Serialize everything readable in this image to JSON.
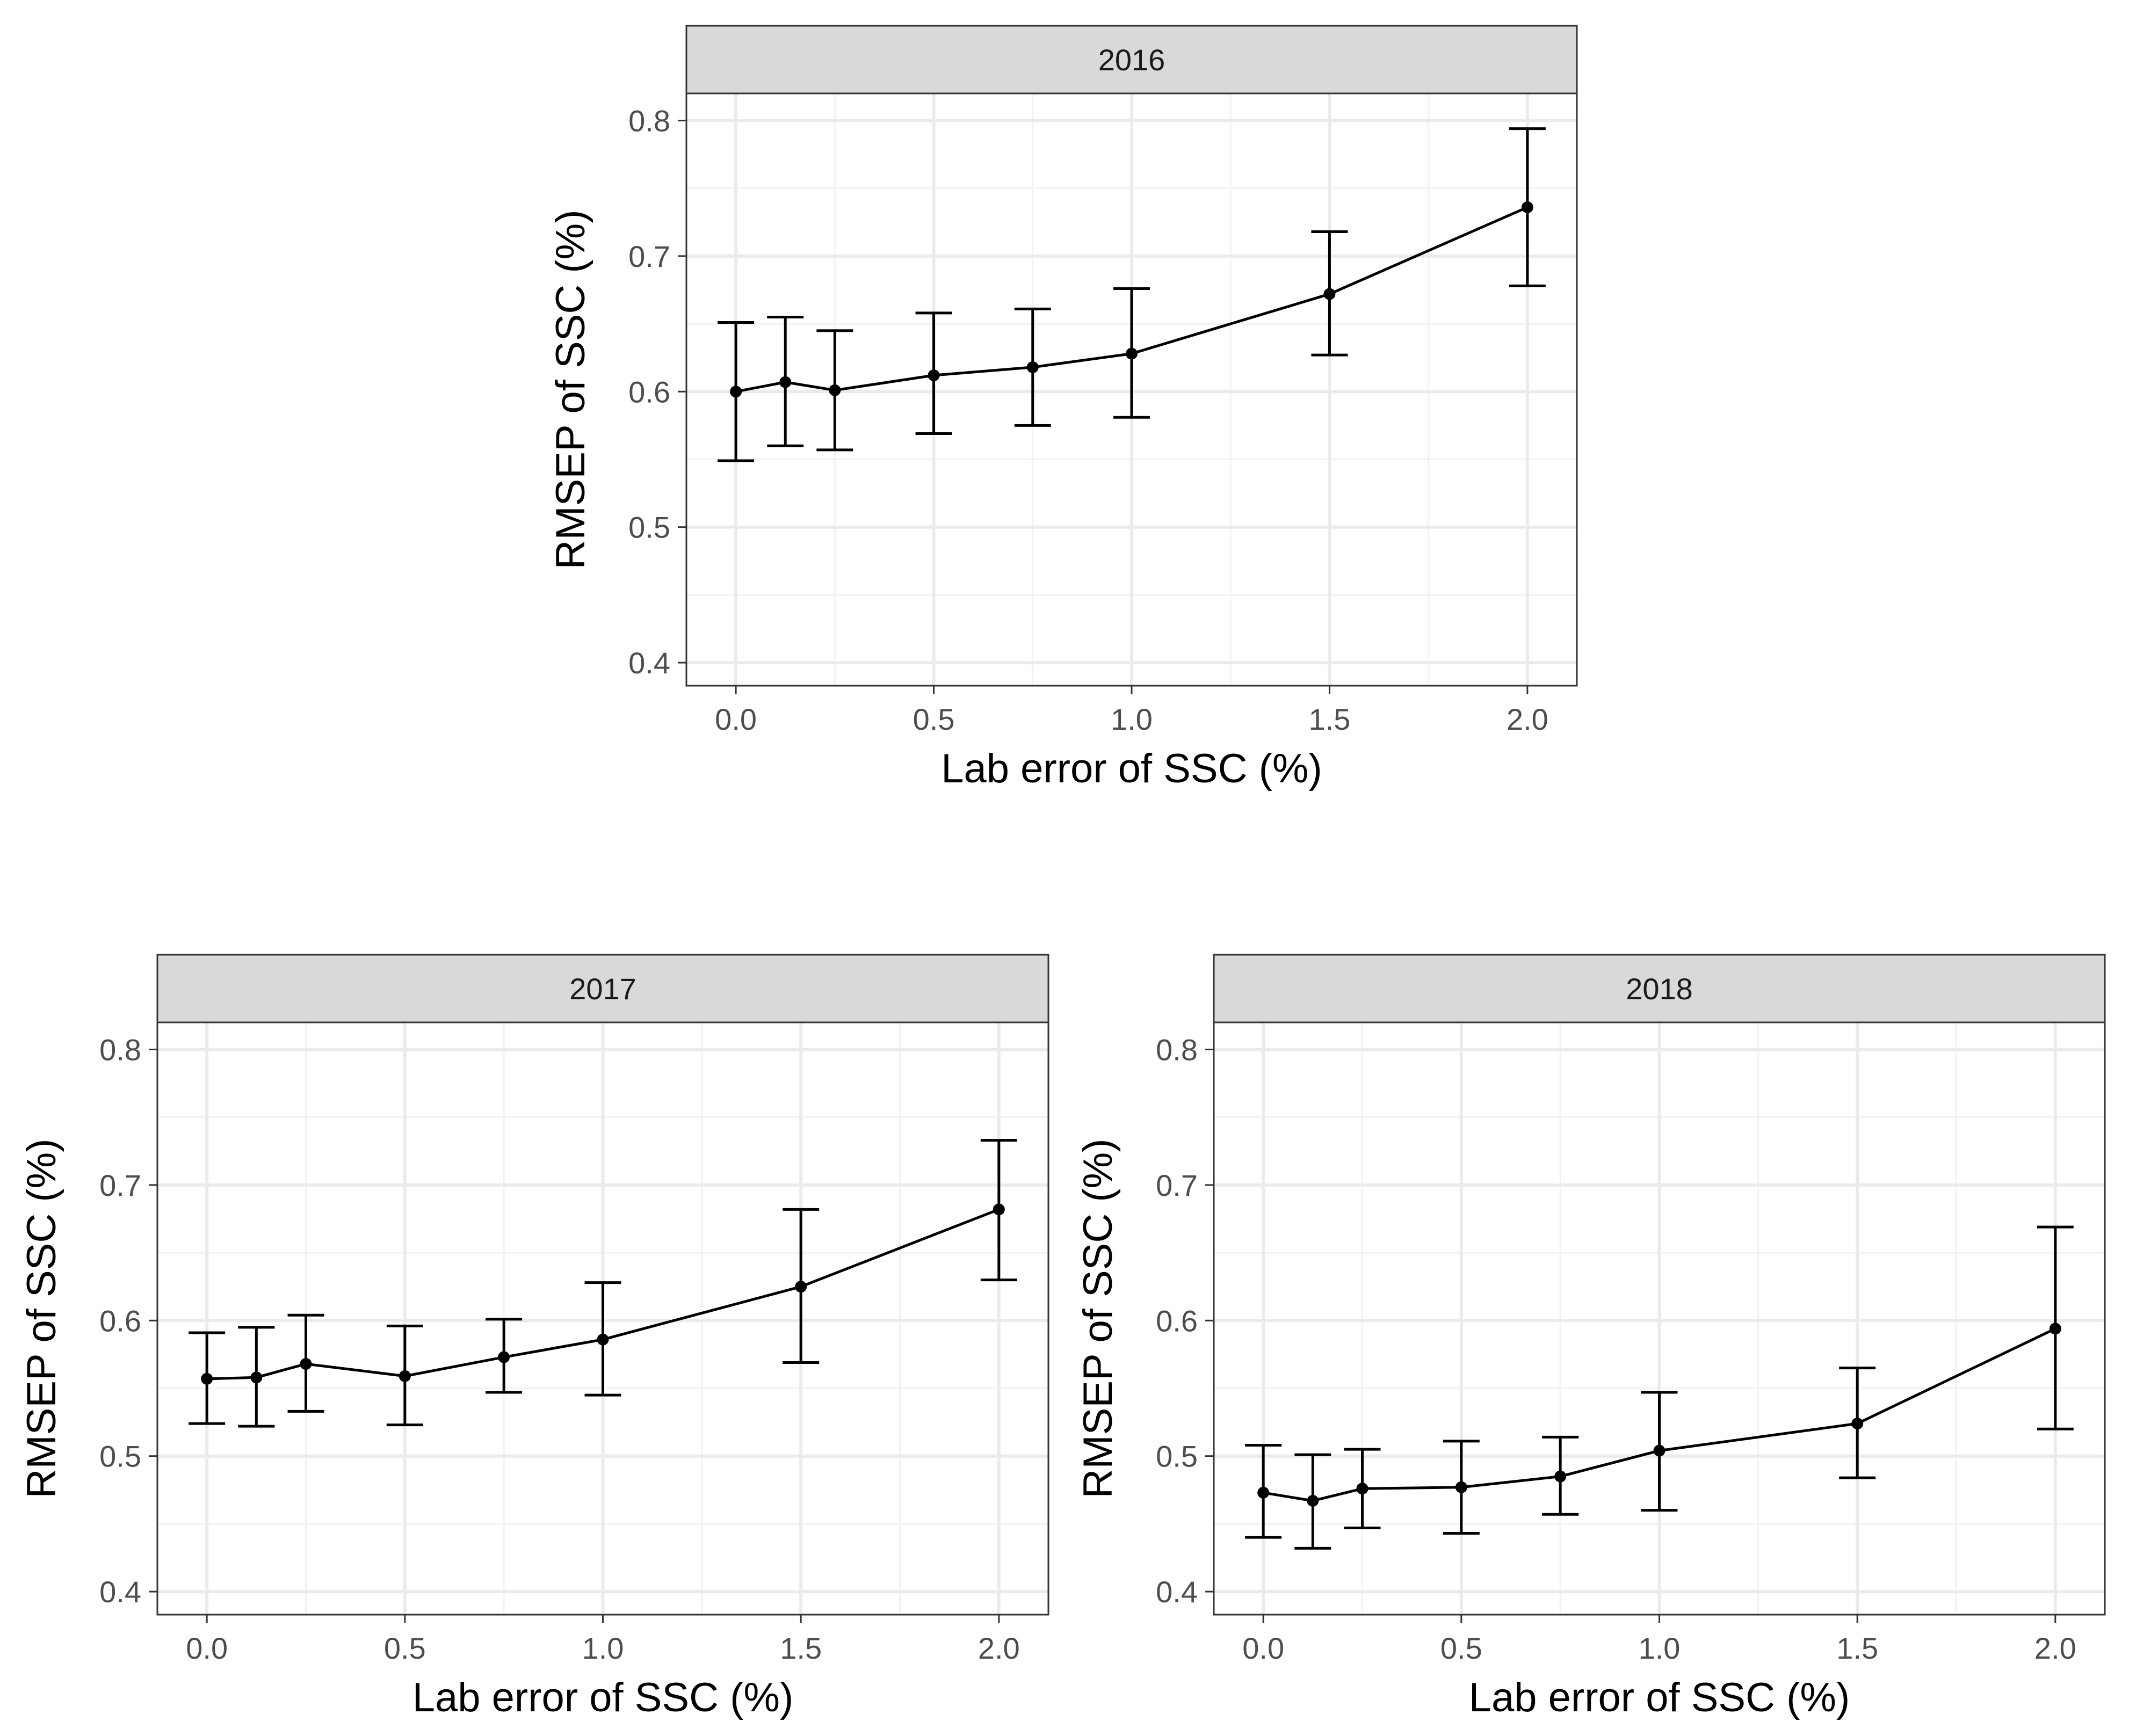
{
  "chart_data": [
    {
      "type": "line",
      "panel": "2016",
      "xlabel": "Lab error of SSC (%)",
      "ylabel": "RMSEP of SSC (%)",
      "xlim": [
        -0.125,
        2.125
      ],
      "ylim": [
        0.383,
        0.82
      ],
      "xticks": [
        0.0,
        0.5,
        1.0,
        1.5,
        2.0
      ],
      "xtick_labels": [
        "0.0",
        "0.5",
        "1.0",
        "1.5",
        "2.0"
      ],
      "yticks": [
        0.4,
        0.5,
        0.6,
        0.7,
        0.8
      ],
      "ytick_labels": [
        "0.4",
        "0.5",
        "0.6",
        "0.7",
        "0.8"
      ],
      "grid": true,
      "x": [
        0.0,
        0.125,
        0.25,
        0.5,
        0.75,
        1.0,
        1.5,
        2.0
      ],
      "y": [
        0.6,
        0.607,
        0.601,
        0.612,
        0.618,
        0.628,
        0.672,
        0.736
      ],
      "ymin": [
        0.549,
        0.56,
        0.557,
        0.569,
        0.575,
        0.581,
        0.627,
        0.678
      ],
      "ymax": [
        0.651,
        0.655,
        0.645,
        0.658,
        0.661,
        0.676,
        0.718,
        0.794
      ]
    },
    {
      "type": "line",
      "panel": "2017",
      "xlabel": "Lab error of SSC (%)",
      "ylabel": "RMSEP of SSC (%)",
      "xlim": [
        -0.125,
        2.125
      ],
      "ylim": [
        0.383,
        0.82
      ],
      "xticks": [
        0.0,
        0.5,
        1.0,
        1.5,
        2.0
      ],
      "xtick_labels": [
        "0.0",
        "0.5",
        "1.0",
        "1.5",
        "2.0"
      ],
      "yticks": [
        0.4,
        0.5,
        0.6,
        0.7,
        0.8
      ],
      "ytick_labels": [
        "0.4",
        "0.5",
        "0.6",
        "0.7",
        "0.8"
      ],
      "grid": true,
      "x": [
        0.0,
        0.125,
        0.25,
        0.5,
        0.75,
        1.0,
        1.5,
        2.0
      ],
      "y": [
        0.557,
        0.558,
        0.568,
        0.559,
        0.573,
        0.586,
        0.625,
        0.682
      ],
      "ymin": [
        0.524,
        0.522,
        0.533,
        0.523,
        0.547,
        0.545,
        0.569,
        0.63
      ],
      "ymax": [
        0.591,
        0.595,
        0.604,
        0.596,
        0.601,
        0.628,
        0.682,
        0.733
      ]
    },
    {
      "type": "line",
      "panel": "2018",
      "xlabel": "Lab error of SSC (%)",
      "ylabel": "RMSEP of SSC (%)",
      "xlim": [
        -0.125,
        2.125
      ],
      "ylim": [
        0.383,
        0.82
      ],
      "xticks": [
        0.0,
        0.5,
        1.0,
        1.5,
        2.0
      ],
      "xtick_labels": [
        "0.0",
        "0.5",
        "1.0",
        "1.5",
        "2.0"
      ],
      "yticks": [
        0.4,
        0.5,
        0.6,
        0.7,
        0.8
      ],
      "ytick_labels": [
        "0.4",
        "0.5",
        "0.6",
        "0.7",
        "0.8"
      ],
      "grid": true,
      "x": [
        0.0,
        0.125,
        0.25,
        0.5,
        0.75,
        1.0,
        1.5,
        2.0
      ],
      "y": [
        0.473,
        0.467,
        0.476,
        0.477,
        0.485,
        0.504,
        0.524,
        0.594
      ],
      "ymin": [
        0.44,
        0.432,
        0.447,
        0.443,
        0.457,
        0.46,
        0.484,
        0.52
      ],
      "ymax": [
        0.508,
        0.501,
        0.505,
        0.511,
        0.514,
        0.547,
        0.565,
        0.669
      ]
    }
  ]
}
